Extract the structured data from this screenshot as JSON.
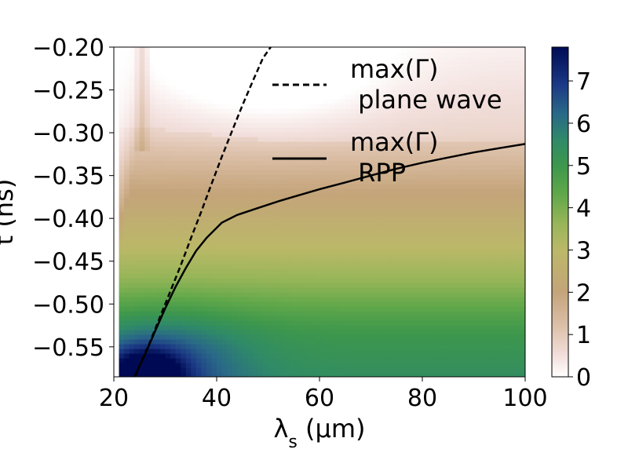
{
  "chart_data": {
    "type": "heatmap",
    "xlabel": "λs (μm)",
    "ylabel": "t (ns)",
    "xlim": [
      20,
      100
    ],
    "ylim": [
      -0.585,
      -0.2
    ],
    "xticks": [
      20,
      40,
      60,
      80,
      100
    ],
    "xtick_labels": [
      "20",
      "40",
      "60",
      "80",
      "100"
    ],
    "yticks": [
      -0.2,
      -0.25,
      -0.3,
      -0.35,
      -0.4,
      -0.45,
      -0.5,
      -0.55
    ],
    "ytick_labels": [
      "−0.20",
      "−0.25",
      "−0.30",
      "−0.35",
      "−0.40",
      "−0.45",
      "−0.50",
      "−0.55"
    ],
    "colormap": "gist_earth_r",
    "colorbar": {
      "range": [
        0,
        7.8
      ],
      "ticks": [
        0,
        1,
        2,
        3,
        4,
        5,
        6,
        7
      ],
      "tick_labels": [
        "0",
        "1",
        "2",
        "3",
        "4",
        "5",
        "6",
        "7"
      ],
      "stops": [
        {
          "v": 0.0,
          "color": "#ffffff"
        },
        {
          "v": 0.5,
          "color": "#f2dfdc"
        },
        {
          "v": 1.2,
          "color": "#dcc0a9"
        },
        {
          "v": 2.0,
          "color": "#c4a47a"
        },
        {
          "v": 3.0,
          "color": "#bbb868"
        },
        {
          "v": 3.6,
          "color": "#99b659"
        },
        {
          "v": 4.3,
          "color": "#62a84a"
        },
        {
          "v": 5.0,
          "color": "#3d974c"
        },
        {
          "v": 5.6,
          "color": "#2f8a68"
        },
        {
          "v": 6.2,
          "color": "#2a6a87"
        },
        {
          "v": 6.9,
          "color": "#1c3a86"
        },
        {
          "v": 7.8,
          "color": "#000a54"
        }
      ]
    },
    "series": [
      {
        "name": "max(Γ)\n plane wave",
        "style": "dashed",
        "x": [
          24.2,
          25,
          27,
          29,
          31,
          33,
          35,
          37,
          39,
          41,
          43,
          45,
          47,
          49,
          50.5
        ],
        "y": [
          -0.585,
          -0.572,
          -0.545,
          -0.515,
          -0.485,
          -0.455,
          -0.423,
          -0.392,
          -0.36,
          -0.328,
          -0.298,
          -0.268,
          -0.24,
          -0.213,
          -0.2
        ]
      },
      {
        "name": "max(Γ)\n RPP",
        "style": "solid",
        "x": [
          24,
          26,
          28,
          30,
          32,
          34,
          36,
          38,
          41,
          44,
          48,
          52,
          56,
          60,
          65,
          70,
          75,
          80,
          85,
          90,
          95,
          100
        ],
        "y": [
          -0.585,
          -0.56,
          -0.532,
          -0.505,
          -0.48,
          -0.458,
          -0.438,
          -0.423,
          -0.405,
          -0.396,
          -0.388,
          -0.38,
          -0.373,
          -0.366,
          -0.358,
          -0.35,
          -0.342,
          -0.335,
          -0.329,
          -0.323,
          -0.318,
          -0.313
        ]
      }
    ],
    "legend": {
      "position": "top-right",
      "entries": [
        {
          "line1": "max(Γ)",
          "line2": " plane wave"
        },
        {
          "line1": "max(Γ)",
          "line2": " RPP"
        }
      ]
    }
  }
}
